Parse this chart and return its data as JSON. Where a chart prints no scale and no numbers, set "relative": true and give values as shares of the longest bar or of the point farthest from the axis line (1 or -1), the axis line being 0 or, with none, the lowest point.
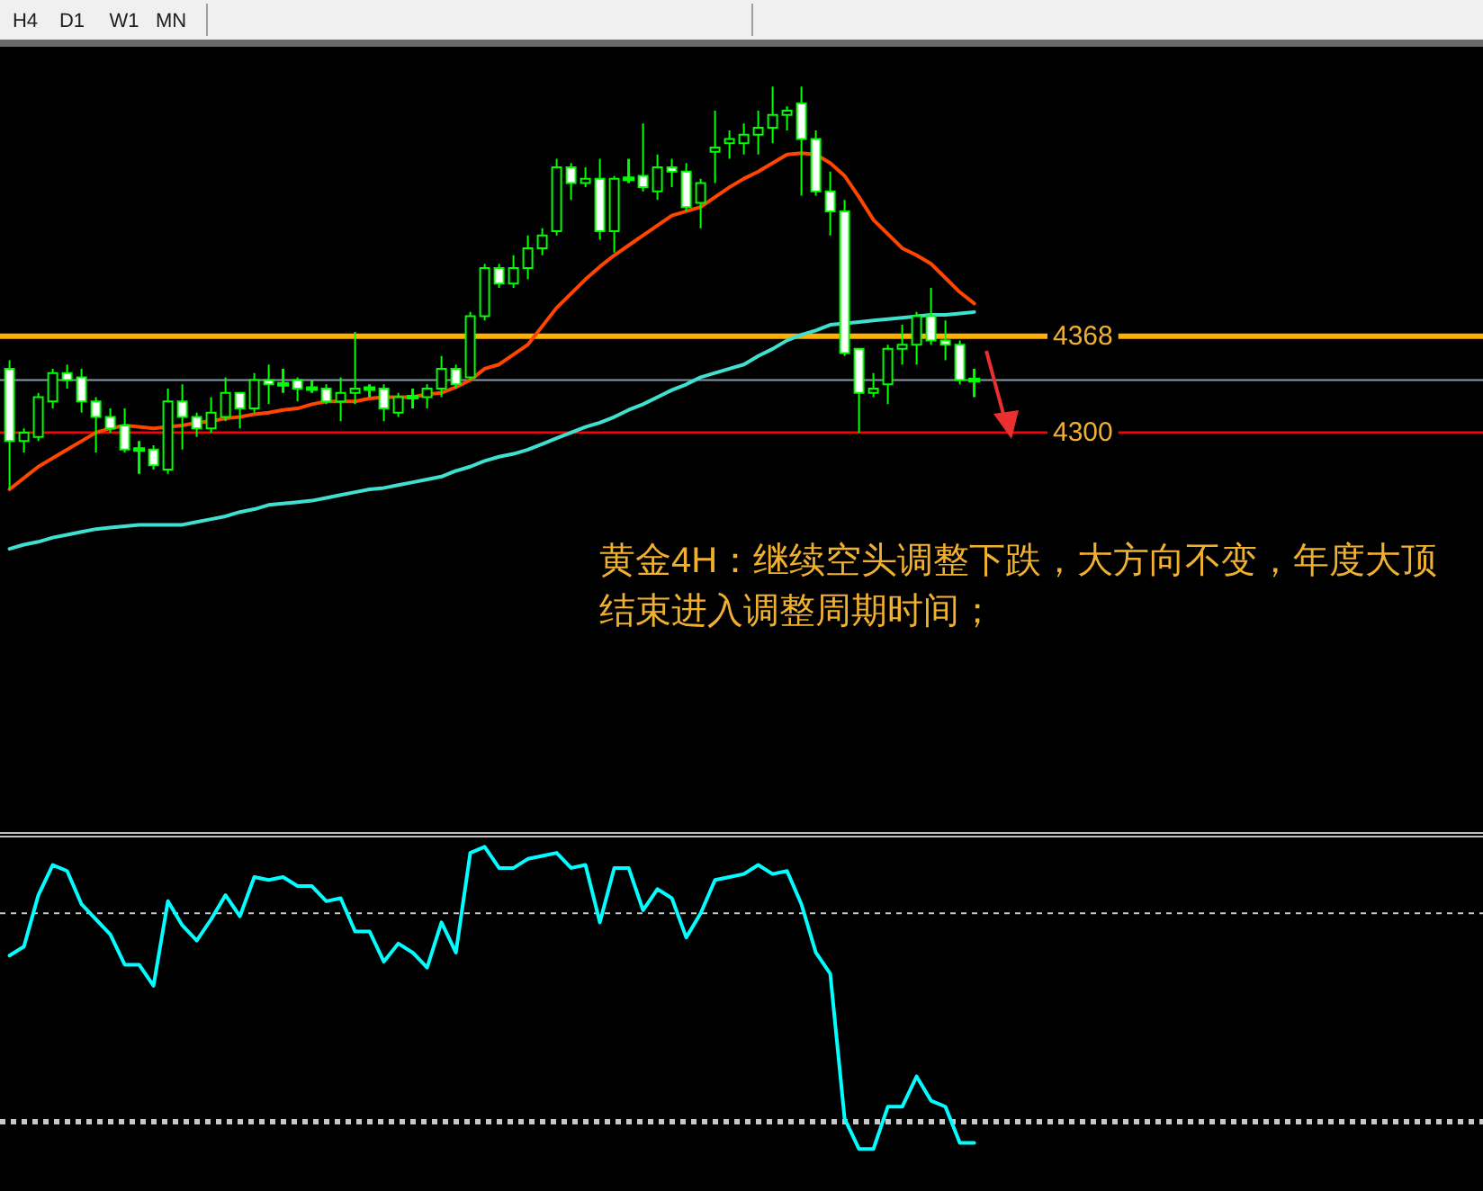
{
  "chart_data": [
    {
      "type": "candlestick",
      "color": "#00ff00",
      "ylim": [
        4019,
        4572
      ],
      "yticks": [
        4300,
        4368
      ],
      "categories": [
        null,
        null,
        null,
        null,
        null,
        null,
        null,
        null,
        null,
        null,
        null,
        null,
        null,
        null,
        null,
        null,
        null,
        null,
        null,
        null,
        null,
        null,
        null,
        null,
        null,
        null,
        null,
        null,
        null,
        null,
        null,
        null,
        null,
        null,
        null,
        null,
        null,
        null,
        null,
        null,
        null,
        null,
        null,
        null,
        null,
        null,
        null,
        null,
        null,
        null,
        null,
        null,
        null,
        null,
        null,
        null,
        null,
        null,
        null,
        null,
        null,
        null,
        null,
        null,
        null,
        null,
        null,
        null
      ],
      "ohlc": [
        [
          4345,
          4351,
          4260,
          4294
        ],
        [
          4294,
          4303,
          4286,
          4300
        ],
        [
          4297,
          4328,
          4294,
          4325
        ],
        [
          4322,
          4345,
          4317,
          4342
        ],
        [
          4342,
          4348,
          4331,
          4337
        ],
        [
          4339,
          4345,
          4314,
          4322
        ],
        [
          4322,
          4325,
          4286,
          4311
        ],
        [
          4311,
          4317,
          4300,
          4303
        ],
        [
          4305,
          4317,
          4286,
          4288
        ],
        [
          4288,
          4294,
          4271,
          4288
        ],
        [
          4288,
          4291,
          4274,
          4277
        ],
        [
          4274,
          4331,
          4271,
          4322
        ],
        [
          4322,
          4334,
          4288,
          4311
        ],
        [
          4311,
          4314,
          4297,
          4303
        ],
        [
          4303,
          4325,
          4300,
          4314
        ],
        [
          4311,
          4339,
          4308,
          4328
        ],
        [
          4328,
          4328,
          4303,
          4317
        ],
        [
          4317,
          4342,
          4314,
          4337
        ],
        [
          4337,
          4348,
          4320,
          4334
        ],
        [
          4334,
          4345,
          4328,
          4334
        ],
        [
          4337,
          4339,
          4322,
          4331
        ],
        [
          4331,
          4337,
          4328,
          4331
        ],
        [
          4331,
          4334,
          4320,
          4322
        ],
        [
          4322,
          4339,
          4308,
          4328
        ],
        [
          4328,
          4371,
          4320,
          4331
        ],
        [
          4331,
          4334,
          4325,
          4331
        ],
        [
          4331,
          4334,
          4308,
          4317
        ],
        [
          4314,
          4328,
          4311,
          4325
        ],
        [
          4325,
          4331,
          4317,
          4325
        ],
        [
          4325,
          4334,
          4317,
          4331
        ],
        [
          4331,
          4354,
          4325,
          4345
        ],
        [
          4345,
          4348,
          4331,
          4334
        ],
        [
          4339,
          4385,
          4337,
          4382
        ],
        [
          4382,
          4419,
          4379,
          4416
        ],
        [
          4416,
          4419,
          4402,
          4405
        ],
        [
          4405,
          4425,
          4402,
          4416
        ],
        [
          4416,
          4439,
          4408,
          4430
        ],
        [
          4430,
          4444,
          4425,
          4439
        ],
        [
          4442,
          4493,
          4439,
          4487
        ],
        [
          4487,
          4490,
          4464,
          4476
        ],
        [
          4476,
          4487,
          4473,
          4479
        ],
        [
          4479,
          4493,
          4436,
          4442
        ],
        [
          4442,
          4481,
          4427,
          4479
        ],
        [
          4479,
          4493,
          4476,
          4479
        ],
        [
          4481,
          4518,
          4470,
          4473
        ],
        [
          4470,
          4496,
          4464,
          4487
        ],
        [
          4487,
          4493,
          4473,
          4484
        ],
        [
          4484,
          4490,
          4456,
          4459
        ],
        [
          4462,
          4479,
          4444,
          4476
        ],
        [
          4498,
          4527,
          4476,
          4501
        ],
        [
          4504,
          4513,
          4493,
          4507
        ],
        [
          4504,
          4518,
          4496,
          4510
        ],
        [
          4510,
          4527,
          4496,
          4515
        ],
        [
          4515,
          4544,
          4504,
          4524
        ],
        [
          4524,
          4530,
          4513,
          4527
        ],
        [
          4532,
          4544,
          4467,
          4507
        ],
        [
          4507,
          4513,
          4467,
          4470
        ],
        [
          4470,
          4484,
          4439,
          4456
        ],
        [
          4456,
          4464,
          4354,
          4356
        ],
        [
          4359,
          4359,
          4300,
          4328
        ],
        [
          4328,
          4342,
          4325,
          4331
        ],
        [
          4334,
          4362,
          4320,
          4359
        ],
        [
          4359,
          4376,
          4348,
          4362
        ],
        [
          4362,
          4385,
          4348,
          4382
        ],
        [
          4382,
          4402,
          4362,
          4365
        ],
        [
          4365,
          4379,
          4351,
          4362
        ],
        [
          4362,
          4365,
          4334,
          4337
        ],
        [
          4337,
          4345,
          4325,
          4337
        ]
      ],
      "series": [
        {
          "type": "line",
          "color": "#ff4500",
          "values": [
            4260,
            4268,
            4276,
            4282,
            4288,
            4294,
            4300,
            4303,
            4305,
            4304,
            4303,
            4304,
            4305,
            4307,
            4308,
            4310,
            4311,
            4313,
            4314,
            4316,
            4317,
            4320,
            4322,
            4322,
            4322,
            4324,
            4325,
            4325,
            4325,
            4327,
            4328,
            4332,
            4337,
            4345,
            4348,
            4355,
            4362,
            4375,
            4388,
            4398,
            4408,
            4417,
            4425,
            4432,
            4439,
            4446,
            4453,
            4456,
            4459,
            4466,
            4473,
            4479,
            4484,
            4490,
            4496,
            4497,
            4496,
            4490,
            4481,
            4466,
            4450,
            4440,
            4430,
            4425,
            4419,
            4409,
            4399,
            4391
          ]
        },
        {
          "type": "line",
          "color": "#40e0d0",
          "values": [
            4218,
            4221,
            4223,
            4226,
            4228,
            4230,
            4232,
            4233,
            4234,
            4235,
            4235,
            4235,
            4235,
            4237,
            4239,
            4241,
            4244,
            4246,
            4249,
            4250,
            4251,
            4252,
            4254,
            4256,
            4258,
            4260,
            4261,
            4263,
            4265,
            4267,
            4269,
            4273,
            4276,
            4280,
            4283,
            4285,
            4288,
            4292,
            4296,
            4300,
            4304,
            4307,
            4311,
            4316,
            4320,
            4325,
            4330,
            4334,
            4339,
            4342,
            4345,
            4348,
            4354,
            4359,
            4365,
            4369,
            4372,
            4376,
            4377,
            4378,
            4379,
            4380,
            4381,
            4382,
            4383,
            4383,
            4384,
            4385
          ]
        }
      ],
      "ref_lines": [
        {
          "axis": "y",
          "value": 4337,
          "color": "#8a9aa8"
        },
        {
          "axis": "y",
          "value": 4368,
          "color": "#ffb000"
        },
        {
          "axis": "y",
          "value": 4300,
          "color": "#ff0000"
        }
      ],
      "annotations": [
        "H4",
        "D1",
        "W1",
        "MN",
        "黄金4H：继续空头调整下跌，大方向不变，年度大顶结束进入调整周期时间；"
      ]
    },
    {
      "type": "line",
      "relative": true,
      "categories": [
        null,
        null,
        null,
        null,
        null,
        null,
        null,
        null,
        null,
        null,
        null,
        null,
        null,
        null,
        null,
        null,
        null,
        null,
        null,
        null,
        null,
        null,
        null,
        null,
        null,
        null,
        null,
        null,
        null,
        null,
        null,
        null,
        null,
        null,
        null,
        null,
        null,
        null,
        null,
        null,
        null,
        null,
        null,
        null,
        null,
        null,
        null,
        null,
        null,
        null,
        null,
        null,
        null,
        null,
        null,
        null,
        null,
        null,
        null,
        null,
        null,
        null,
        null,
        null,
        null,
        null,
        null,
        null
      ],
      "series": [
        {
          "color": "#00ffff",
          "values": [
            0.64,
            0.67,
            0.84,
            0.94,
            0.92,
            0.81,
            0.76,
            0.71,
            0.61,
            0.61,
            0.54,
            0.82,
            0.74,
            0.69,
            0.76,
            0.84,
            0.77,
            0.9,
            0.89,
            0.9,
            0.87,
            0.87,
            0.82,
            0.83,
            0.72,
            0.72,
            0.62,
            0.68,
            0.65,
            0.6,
            0.75,
            0.65,
            0.98,
            1.0,
            0.93,
            0.93,
            0.96,
            0.97,
            0.98,
            0.93,
            0.94,
            0.75,
            0.93,
            0.93,
            0.79,
            0.86,
            0.83,
            0.7,
            0.78,
            0.89,
            0.9,
            0.91,
            0.94,
            0.91,
            0.92,
            0.81,
            0.65,
            0.58,
            0.1,
            0.0,
            0.0,
            0.14,
            0.14,
            0.24,
            0.16,
            0.14,
            0.02,
            0.02
          ]
        }
      ],
      "ref_lines": [
        {
          "axis": "y",
          "value": 0.78,
          "color": "#c8c8c8",
          "line_style": "dashed"
        },
        {
          "axis": "y",
          "value": 0.09,
          "color": "#c8c8c8",
          "line_style": "dashed"
        }
      ]
    }
  ]
}
